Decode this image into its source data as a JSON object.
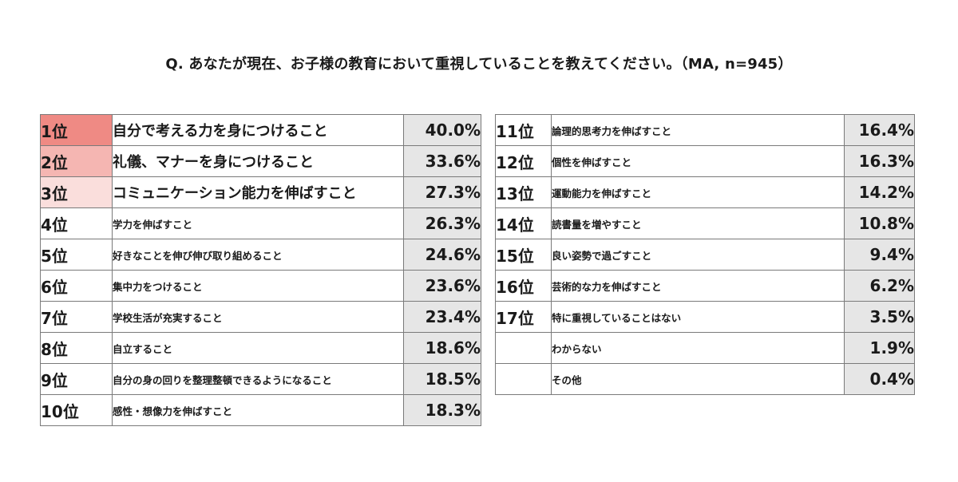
{
  "title": "Q. あなたが現在、お子様の教育において重視していることを教えてください。（MA, n=945）",
  "colors": {
    "rank1": "#ef8a84",
    "rank2": "#f5b6b2",
    "rank3": "#fadedc",
    "value_bg": "#e6e6e6",
    "border": "#7a7a7a"
  },
  "chart_data": {
    "type": "table",
    "unit": "%",
    "columns": [
      {
        "rows": [
          {
            "rank": "1位",
            "item": "自分で考える力を身につけること",
            "value": 40.0,
            "display": "40.0%"
          },
          {
            "rank": "2位",
            "item": "礼儀、マナーを身につけること",
            "value": 33.6,
            "display": "33.6%"
          },
          {
            "rank": "3位",
            "item": "コミュニケーション能力を伸ばすこと",
            "value": 27.3,
            "display": "27.3%"
          },
          {
            "rank": "4位",
            "item": "学力を伸ばすこと",
            "value": 26.3,
            "display": "26.3%"
          },
          {
            "rank": "5位",
            "item": "好きなことを伸び伸び取り組めること",
            "value": 24.6,
            "display": "24.6%"
          },
          {
            "rank": "6位",
            "item": "集中力をつけること",
            "value": 23.6,
            "display": "23.6%"
          },
          {
            "rank": "7位",
            "item": "学校生活が充実すること",
            "value": 23.4,
            "display": "23.4%"
          },
          {
            "rank": "8位",
            "item": "自立すること",
            "value": 18.6,
            "display": "18.6%"
          },
          {
            "rank": "9位",
            "item": "自分の身の回りを整理整頓できるようになること",
            "value": 18.5,
            "display": "18.5%"
          },
          {
            "rank": "10位",
            "item": "感性・想像力を伸ばすこと",
            "value": 18.3,
            "display": "18.3%"
          }
        ]
      },
      {
        "rows": [
          {
            "rank": "11位",
            "item": "論理的思考力を伸ばすこと",
            "value": 16.4,
            "display": "16.4%"
          },
          {
            "rank": "12位",
            "item": "個性を伸ばすこと",
            "value": 16.3,
            "display": "16.3%"
          },
          {
            "rank": "13位",
            "item": "運動能力を伸ばすこと",
            "value": 14.2,
            "display": "14.2%"
          },
          {
            "rank": "14位",
            "item": "読書量を増やすこと",
            "value": 10.8,
            "display": "10.8%"
          },
          {
            "rank": "15位",
            "item": "良い姿勢で過ごすこと",
            "value": 9.4,
            "display": "9.4%"
          },
          {
            "rank": "16位",
            "item": "芸術的な力を伸ばすこと",
            "value": 6.2,
            "display": "6.2%"
          },
          {
            "rank": "17位",
            "item": "特に重視していることはない",
            "value": 3.5,
            "display": "3.5%"
          },
          {
            "rank": "",
            "item": "わからない",
            "value": 1.9,
            "display": "1.9%"
          },
          {
            "rank": "",
            "item": "その他",
            "value": 0.4,
            "display": "0.4%"
          }
        ]
      }
    ]
  }
}
